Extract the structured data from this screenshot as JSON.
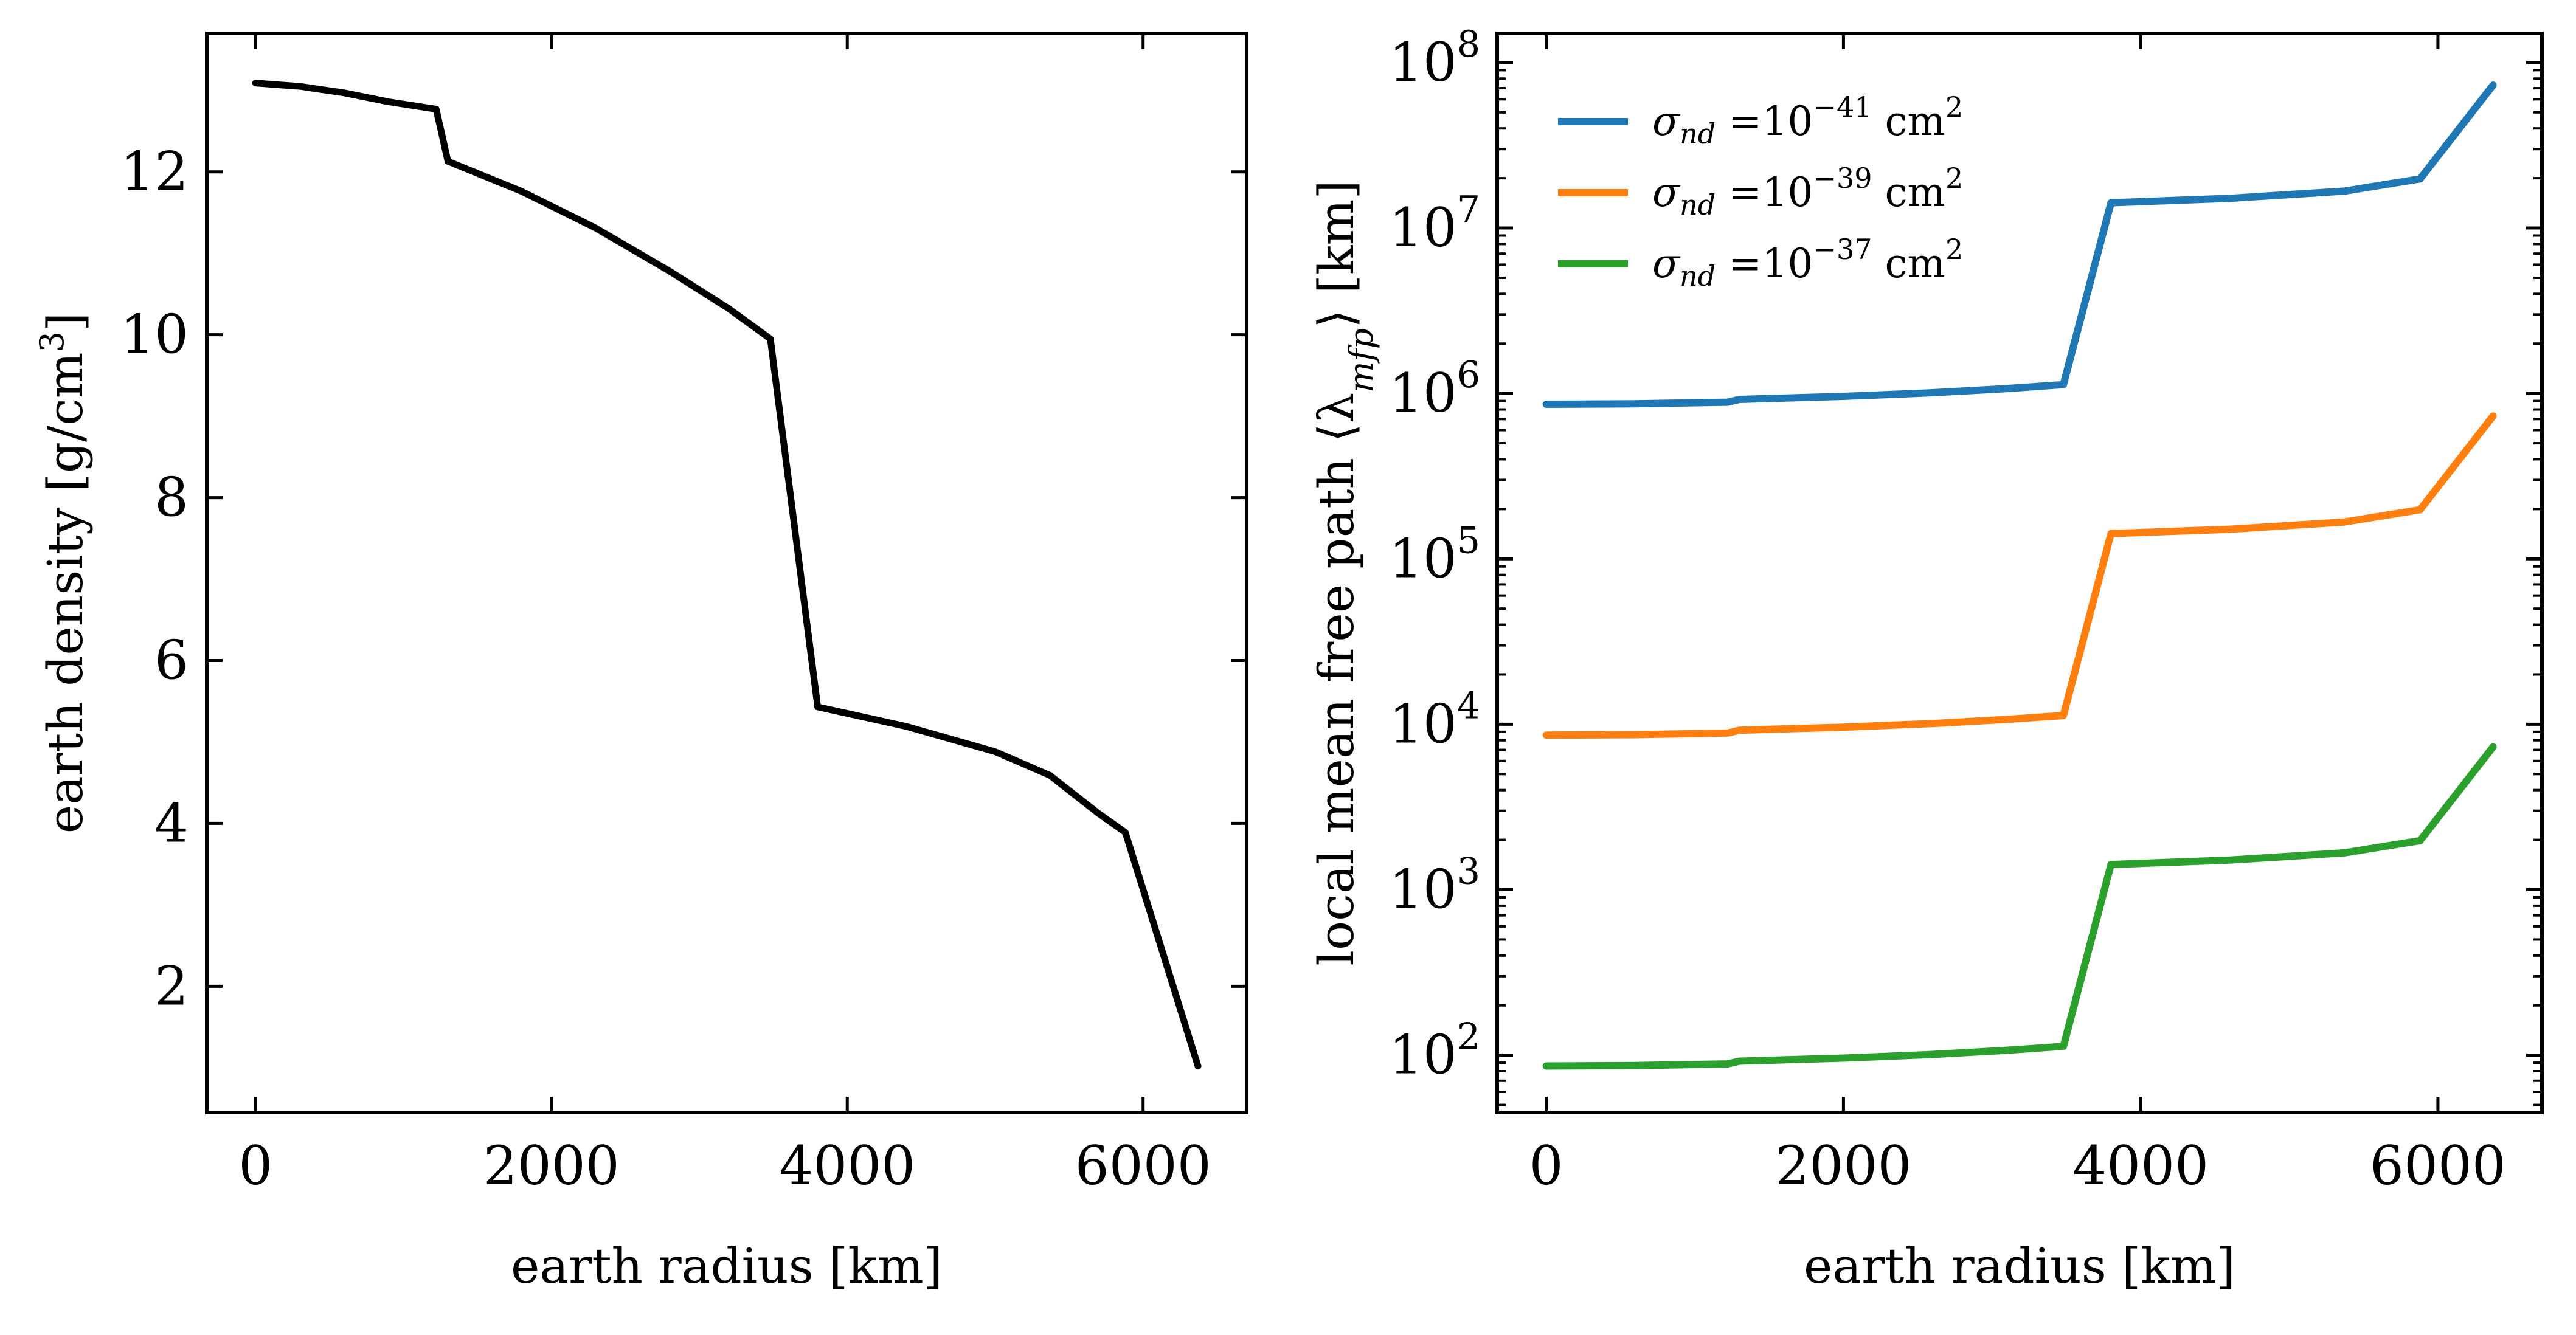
{
  "chart_data": [
    {
      "type": "line",
      "xlabel": "earth radius [km]",
      "ylabel": "earth density [g/cm",
      "ylabel_sup": "3",
      "ylabel_end": "]",
      "xlim": [
        -330,
        6700
      ],
      "ylim": [
        0.45,
        13.7
      ],
      "xticks": [
        0,
        2000,
        4000,
        6000
      ],
      "yticks": [
        2,
        4,
        6,
        8,
        10,
        12
      ],
      "xtick_labels": [
        "0",
        "2000",
        "4000",
        "6000"
      ],
      "ytick_labels": [
        "2",
        "4",
        "6",
        "8",
        "10",
        "12"
      ],
      "color": "#000000",
      "series": [
        {
          "x": [
            0,
            300,
            600,
            900,
            1221,
            1300,
            1800,
            2300,
            2800,
            3200,
            3480,
            3800,
            4400,
            5000,
            5370,
            5700,
            5880,
            6371
          ],
          "y": [
            13.09,
            13.05,
            12.97,
            12.86,
            12.77,
            12.13,
            11.76,
            11.31,
            10.78,
            10.32,
            9.95,
            5.43,
            5.19,
            4.88,
            4.59,
            4.12,
            3.89,
            1.02
          ]
        }
      ]
    },
    {
      "type": "line",
      "yscale": "log",
      "xlabel": "earth radius [km]",
      "ylabel": "local mean free path ⟨λ",
      "ylabel_sub": "mfp",
      "ylabel_end": "⟩ [km]",
      "xlim": [
        -330,
        6700
      ],
      "ylim": [
        45,
        150000000
      ],
      "xticks": [
        0,
        2000,
        4000,
        6000
      ],
      "xtick_labels": [
        "0",
        "2000",
        "4000",
        "6000"
      ],
      "ytick_base": "10",
      "ytick_exponents": [
        "2",
        "3",
        "4",
        "5",
        "6",
        "7",
        "8"
      ],
      "legend_position": "upper-left",
      "x": [
        0,
        600,
        1221,
        1300,
        2000,
        2600,
        3100,
        3480,
        3800,
        4600,
        5370,
        5880,
        6371
      ],
      "series": [
        {
          "label_sym": "σ",
          "label_sub": "nd",
          "label_mid": " =10",
          "label_exp": "−41",
          "label_unit": " cm",
          "label_unit_sup": "2",
          "color": "#1f77b4",
          "values": [
            860000,
            865000,
            885000,
            920000,
            960000,
            1010000,
            1070000,
            1130000,
            14200000,
            15100000,
            16700000,
            19800000,
            73000000
          ]
        },
        {
          "label_sym": "σ",
          "label_sub": "nd",
          "label_mid": " =10",
          "label_exp": "−39",
          "label_unit": " cm",
          "label_unit_sup": "2",
          "color": "#ff7f0e",
          "values": [
            8600,
            8650,
            8850,
            9200,
            9600,
            10100,
            10700,
            11300,
            142000,
            151000,
            167000,
            198000,
            730000
          ]
        },
        {
          "label_sym": "σ",
          "label_sub": "nd",
          "label_mid": " =10",
          "label_exp": "−37",
          "label_unit": " cm",
          "label_unit_sup": "2",
          "color": "#2ca02c",
          "values": [
            86,
            86.5,
            88.5,
            92,
            96,
            101,
            107,
            113,
            1420,
            1510,
            1670,
            1980,
            7300
          ]
        }
      ]
    }
  ]
}
